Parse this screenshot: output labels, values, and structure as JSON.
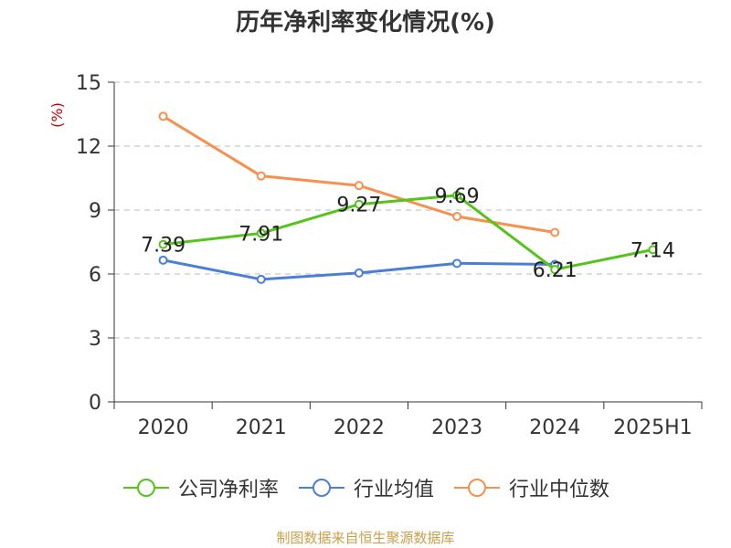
{
  "chart_data": {
    "type": "line",
    "title": "历年净利率变化情况(%)",
    "ylabel": "(%)",
    "xlabel": "",
    "categories": [
      "2020",
      "2021",
      "2022",
      "2023",
      "2024",
      "2025H1"
    ],
    "ylim": [
      0,
      15
    ],
    "yticks": [
      0,
      3,
      6,
      9,
      12,
      15
    ],
    "grid": true,
    "legend_position": "bottom",
    "series": [
      {
        "name": "公司净利率",
        "color": "#52c41a",
        "values": [
          7.39,
          7.91,
          9.27,
          9.69,
          6.21,
          7.14
        ],
        "labels": [
          "7.39",
          "7.91",
          "9.27",
          "9.69",
          "6.21",
          "7.14"
        ]
      },
      {
        "name": "行业均值",
        "color": "#4a7fd8",
        "values": [
          6.65,
          5.75,
          6.05,
          6.5,
          6.45,
          null
        ],
        "labels": []
      },
      {
        "name": "行业中位数",
        "color": "#f7904f",
        "values": [
          13.4,
          10.6,
          10.15,
          8.7,
          7.95,
          null
        ],
        "labels": []
      }
    ]
  },
  "source_note": "制图数据来自恒生聚源数据库"
}
